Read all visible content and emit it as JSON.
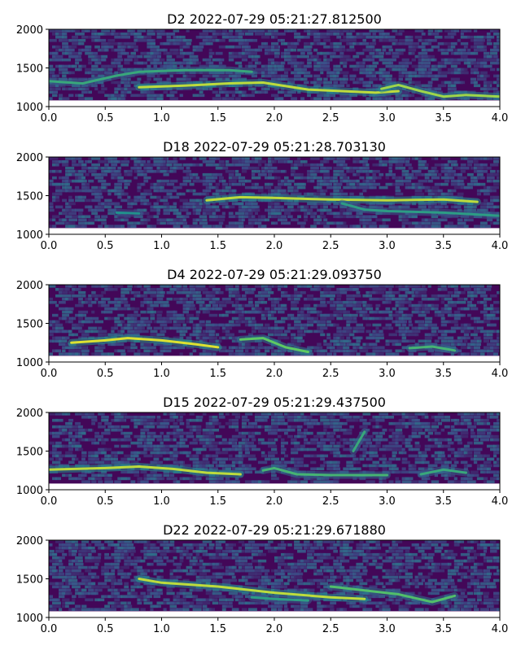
{
  "chart_data": [
    {
      "type": "heatmap",
      "title": "D2 2022-07-29 05:21:27.812500",
      "xlim": [
        0.0,
        4.0
      ],
      "ylim": [
        1000,
        2000
      ],
      "data_ymin": 1080,
      "xticks": [
        "0.0",
        "0.5",
        "1.0",
        "1.5",
        "2.0",
        "2.5",
        "3.0",
        "3.5",
        "4.0"
      ],
      "yticks": [
        "1000",
        "1500",
        "2000"
      ],
      "colormap": "viridis",
      "grid": false,
      "traces": [
        {
          "points": [
            [
              0.0,
              1330
            ],
            [
              0.3,
              1300
            ],
            [
              0.6,
              1400
            ],
            [
              0.8,
              1450
            ],
            [
              1.2,
              1470
            ],
            [
              1.6,
              1470
            ],
            [
              1.8,
              1450
            ]
          ],
          "strength": 0.6
        },
        {
          "points": [
            [
              0.8,
              1250
            ],
            [
              1.2,
              1270
            ],
            [
              1.6,
              1300
            ],
            [
              1.9,
              1310
            ],
            [
              2.3,
              1220
            ],
            [
              2.6,
              1200
            ],
            [
              2.9,
              1180
            ],
            [
              3.1,
              1200
            ]
          ],
          "strength": 0.9
        },
        {
          "points": [
            [
              2.95,
              1230
            ],
            [
              3.1,
              1280
            ],
            [
              3.3,
              1200
            ],
            [
              3.5,
              1130
            ],
            [
              3.7,
              1150
            ],
            [
              4.0,
              1130
            ]
          ],
          "strength": 0.85
        }
      ]
    },
    {
      "type": "heatmap",
      "title": "D18 2022-07-29 05:21:28.703130",
      "xlim": [
        0.0,
        4.0
      ],
      "ylim": [
        1000,
        2000
      ],
      "data_ymin": 1080,
      "xticks": [
        "0.0",
        "0.5",
        "1.0",
        "1.5",
        "2.0",
        "2.5",
        "3.0",
        "3.5",
        "4.0"
      ],
      "yticks": [
        "1000",
        "1500",
        "2000"
      ],
      "colormap": "viridis",
      "grid": false,
      "traces": [
        {
          "points": [
            [
              0.6,
              1280
            ],
            [
              0.8,
              1270
            ]
          ],
          "strength": 0.5
        },
        {
          "points": [
            [
              1.4,
              1440
            ],
            [
              1.7,
              1480
            ],
            [
              2.0,
              1470
            ],
            [
              2.5,
              1450
            ],
            [
              3.0,
              1440
            ],
            [
              3.5,
              1450
            ],
            [
              3.8,
              1420
            ]
          ],
          "strength": 0.9
        },
        {
          "points": [
            [
              2.6,
              1400
            ],
            [
              2.8,
              1320
            ],
            [
              3.0,
              1300
            ],
            [
              3.5,
              1280
            ],
            [
              4.0,
              1240
            ]
          ],
          "strength": 0.55
        }
      ]
    },
    {
      "type": "heatmap",
      "title": "D4 2022-07-29 05:21:29.093750",
      "xlim": [
        0.0,
        4.0
      ],
      "ylim": [
        1000,
        2000
      ],
      "data_ymin": 1080,
      "xticks": [
        "0.0",
        "0.5",
        "1.0",
        "1.5",
        "2.0",
        "2.5",
        "3.0",
        "3.5",
        "4.0"
      ],
      "yticks": [
        "1000",
        "1500",
        "2000"
      ],
      "colormap": "viridis",
      "grid": false,
      "traces": [
        {
          "points": [
            [
              0.2,
              1250
            ],
            [
              0.5,
              1280
            ],
            [
              0.7,
              1310
            ],
            [
              1.0,
              1280
            ],
            [
              1.3,
              1230
            ],
            [
              1.5,
              1190
            ]
          ],
          "strength": 0.95
        },
        {
          "points": [
            [
              1.7,
              1290
            ],
            [
              1.9,
              1310
            ],
            [
              2.1,
              1190
            ],
            [
              2.3,
              1130
            ]
          ],
          "strength": 0.75
        },
        {
          "points": [
            [
              3.2,
              1180
            ],
            [
              3.4,
              1200
            ],
            [
              3.6,
              1150
            ]
          ],
          "strength": 0.65
        }
      ]
    },
    {
      "type": "heatmap",
      "title": "D15 2022-07-29 05:21:29.437500",
      "xlim": [
        0.0,
        4.0
      ],
      "ylim": [
        1000,
        2000
      ],
      "data_ymin": 1080,
      "xticks": [
        "0.0",
        "0.5",
        "1.0",
        "1.5",
        "2.0",
        "2.5",
        "3.0",
        "3.5",
        "4.0"
      ],
      "yticks": [
        "1000",
        "1500",
        "2000"
      ],
      "colormap": "viridis",
      "grid": false,
      "traces": [
        {
          "points": [
            [
              0.0,
              1260
            ],
            [
              0.5,
              1280
            ],
            [
              0.8,
              1300
            ],
            [
              1.1,
              1270
            ],
            [
              1.4,
              1220
            ],
            [
              1.7,
              1200
            ]
          ],
          "strength": 0.9
        },
        {
          "points": [
            [
              1.9,
              1250
            ],
            [
              2.0,
              1280
            ],
            [
              2.2,
              1200
            ],
            [
              2.5,
              1190
            ],
            [
              3.0,
              1190
            ]
          ],
          "strength": 0.65
        },
        {
          "points": [
            [
              2.7,
              1500
            ],
            [
              2.8,
              1750
            ]
          ],
          "strength": 0.6
        },
        {
          "points": [
            [
              3.3,
              1200
            ],
            [
              3.5,
              1260
            ],
            [
              3.7,
              1220
            ]
          ],
          "strength": 0.6
        }
      ]
    },
    {
      "type": "heatmap",
      "title": "D22 2022-07-29 05:21:29.671880",
      "xlim": [
        0.0,
        4.0
      ],
      "ylim": [
        1000,
        2000
      ],
      "data_ymin": 1080,
      "xticks": [
        "0.0",
        "0.5",
        "1.0",
        "1.5",
        "2.0",
        "2.5",
        "3.0",
        "3.5",
        "4.0"
      ],
      "yticks": [
        "1000",
        "1500",
        "2000"
      ],
      "colormap": "viridis",
      "grid": false,
      "traces": [
        {
          "points": [
            [
              0.8,
              1500
            ],
            [
              1.0,
              1450
            ],
            [
              1.5,
              1400
            ],
            [
              2.0,
              1320
            ],
            [
              2.5,
              1260
            ],
            [
              2.8,
              1240
            ]
          ],
          "strength": 0.9
        },
        {
          "points": [
            [
              2.5,
              1400
            ],
            [
              2.8,
              1350
            ],
            [
              3.1,
              1300
            ],
            [
              3.4,
              1200
            ],
            [
              3.6,
              1280
            ]
          ],
          "strength": 0.7
        },
        {
          "points": [
            [
              1.8,
              1260
            ],
            [
              2.0,
              1240
            ],
            [
              2.3,
              1220
            ]
          ],
          "strength": 0.55
        }
      ]
    }
  ]
}
